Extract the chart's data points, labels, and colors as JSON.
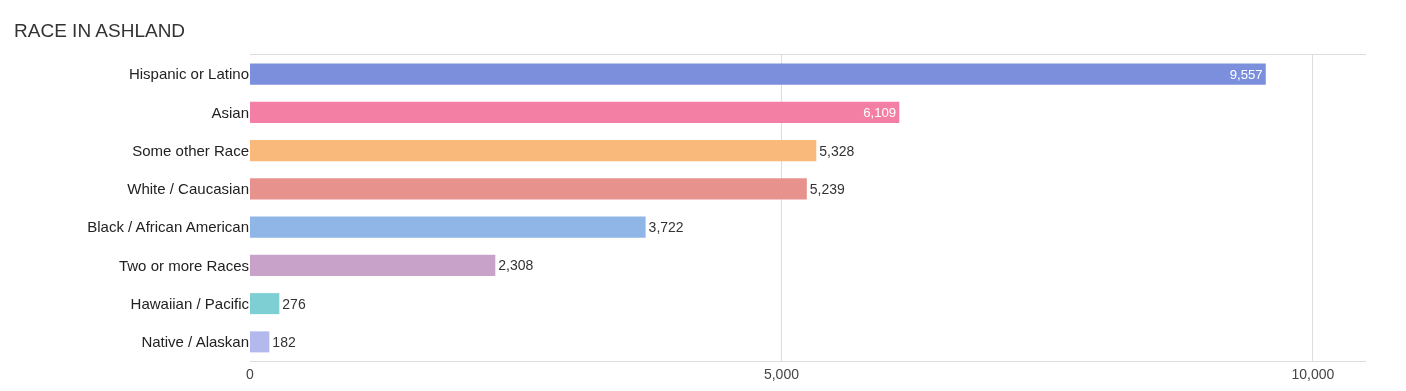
{
  "chart_data": {
    "type": "bar",
    "orientation": "horizontal",
    "title": "RACE IN ASHLAND",
    "categories": [
      "Hispanic or Latino",
      "Asian",
      "Some other Race",
      "White / Caucasian",
      "Black / African American",
      "Two or more Races",
      "Hawaiian / Pacific",
      "Native / Alaskan"
    ],
    "values": [
      9557,
      6109,
      5328,
      5239,
      3722,
      2308,
      276,
      182
    ],
    "value_labels": [
      "9,557",
      "6,109",
      "5,328",
      "5,239",
      "3,722",
      "2,308",
      "276",
      "182"
    ],
    "colors": [
      "#7b8fdc",
      "#f47fa5",
      "#f9b97a",
      "#e8928e",
      "#8fb6e6",
      "#c8a2c8",
      "#7ecfd4",
      "#b3b9ec"
    ],
    "xlim": [
      0,
      10500
    ],
    "xticks": [
      0,
      {
        "value": 5000,
        "label": "5,000"
      },
      {
        "value": 10000,
        "label": "10,000"
      }
    ],
    "grid": "x"
  }
}
